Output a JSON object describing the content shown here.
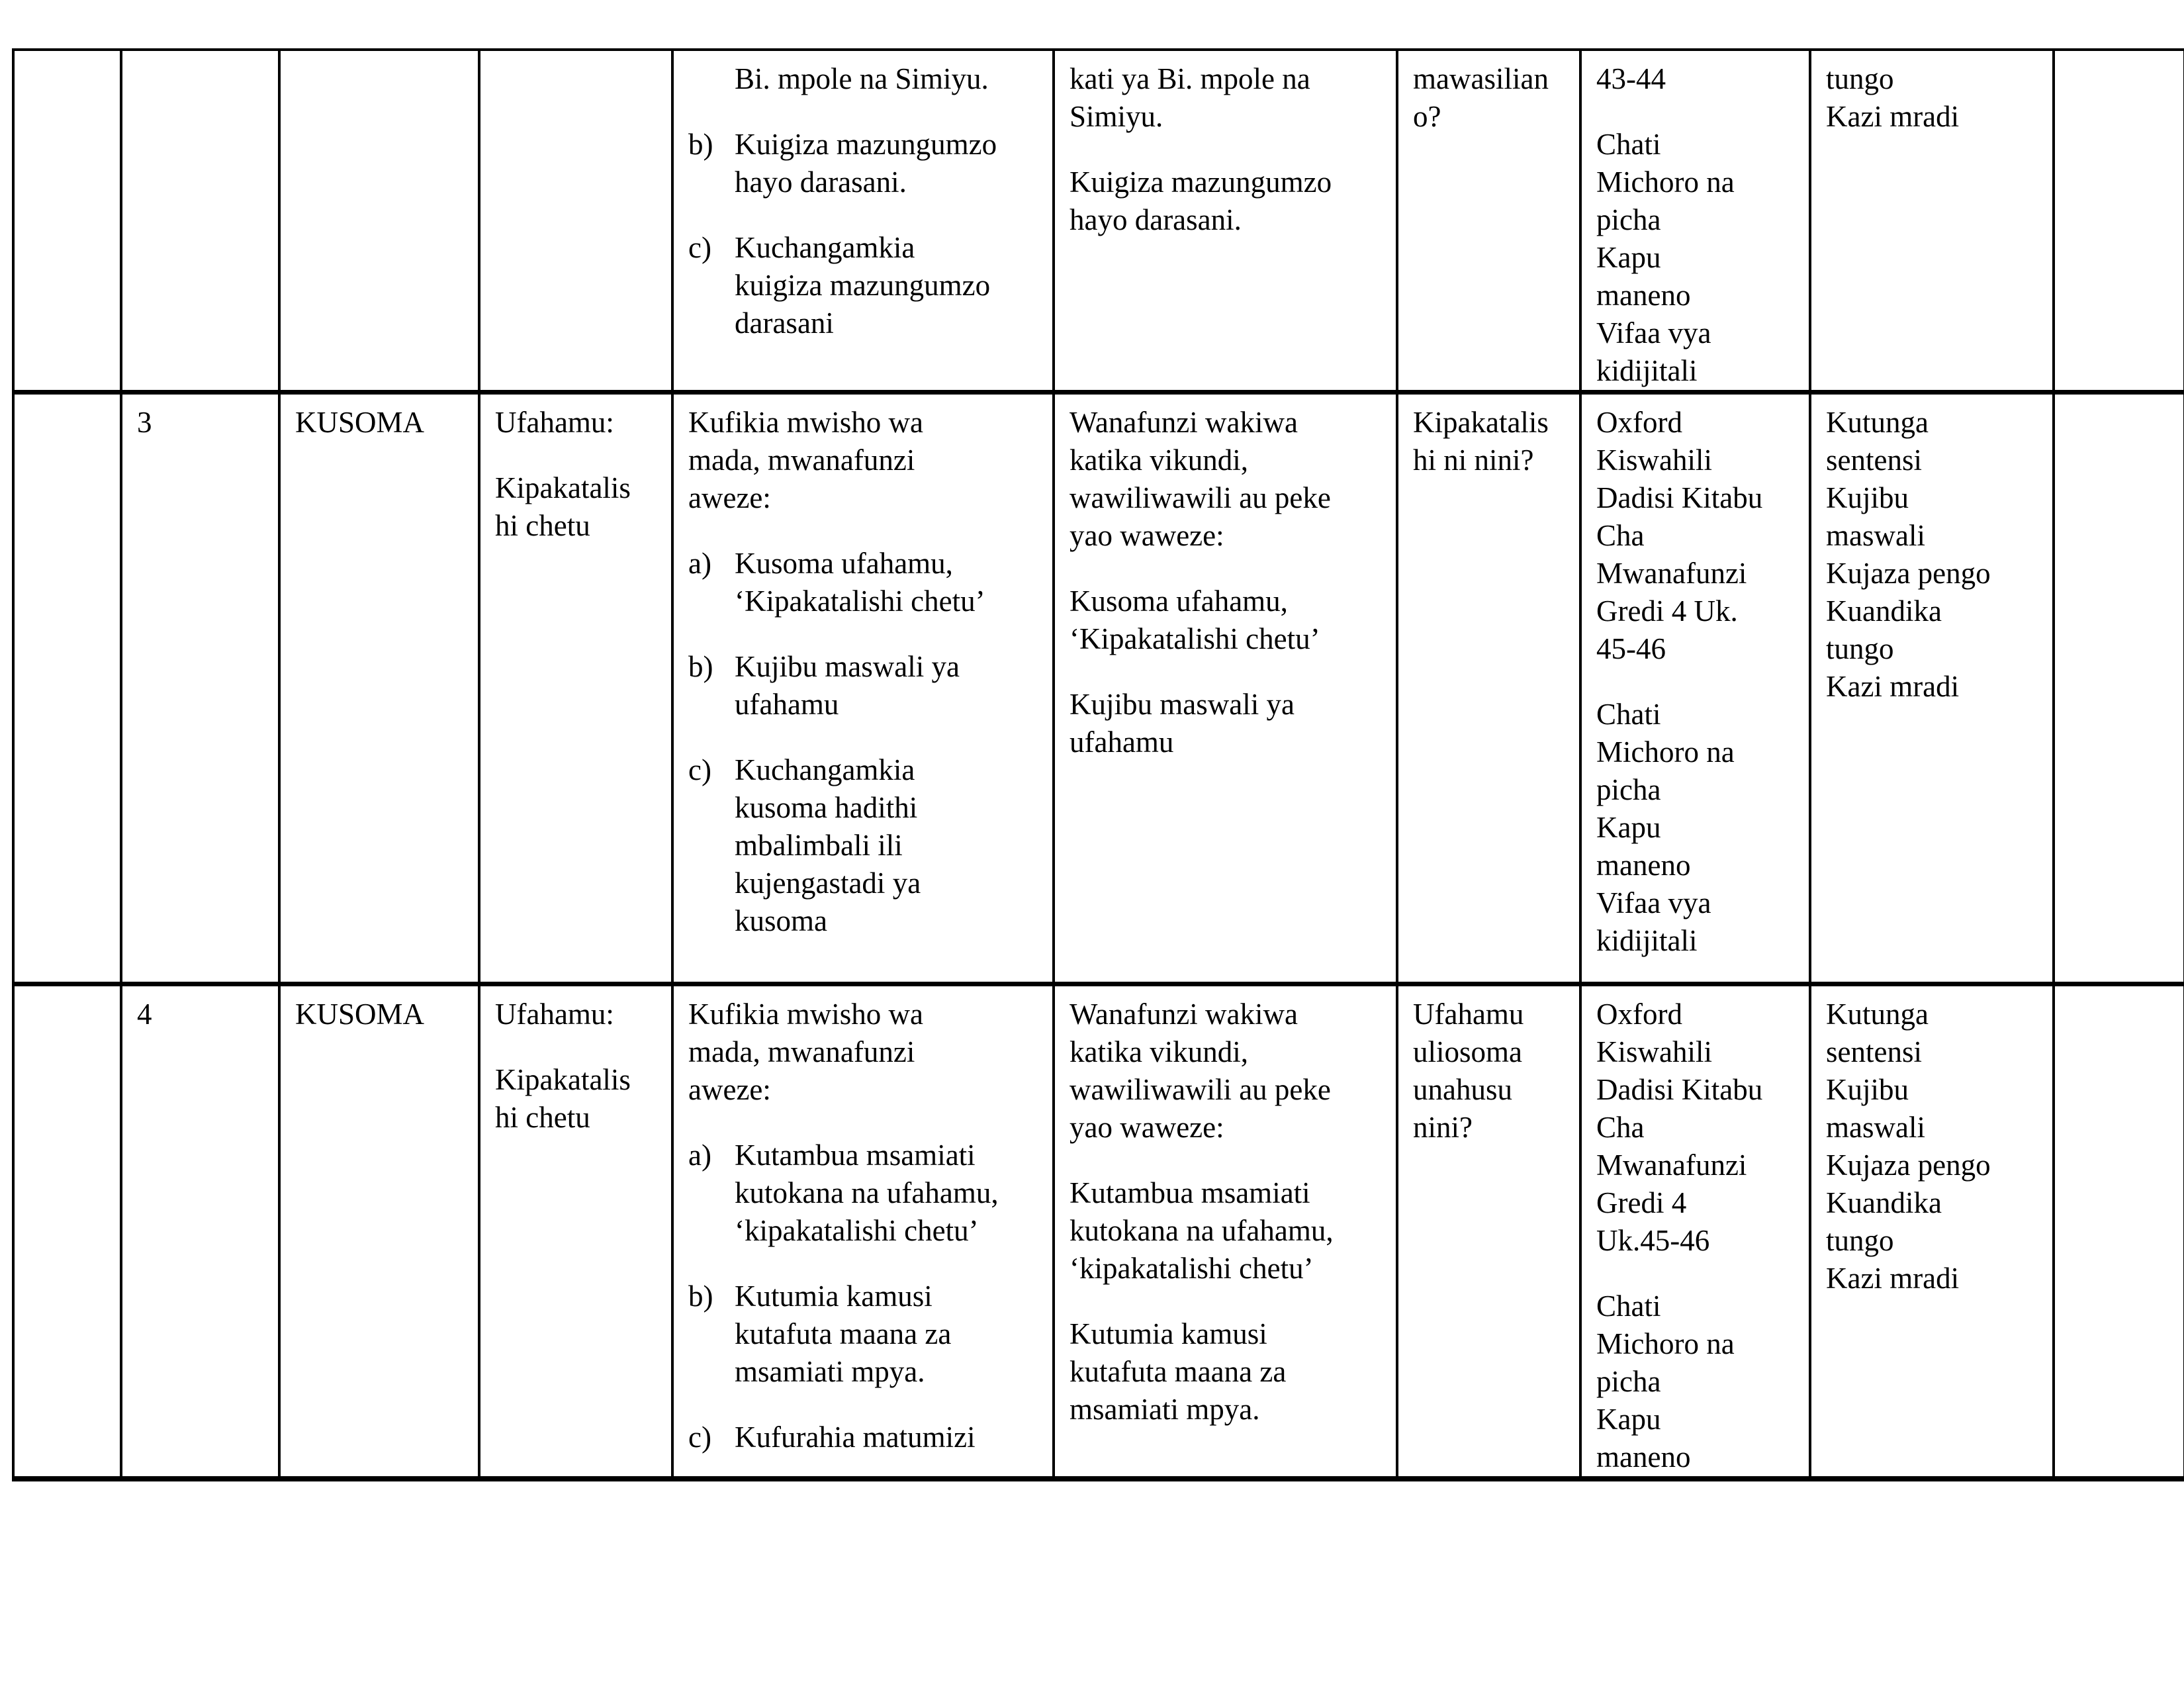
{
  "document": {
    "kind": "scheme-of-work-table",
    "language": "Kiswahili",
    "background_color": "#ffffff",
    "border_color": "#000000",
    "text_color": "#000000"
  },
  "table": {
    "columns": [
      {
        "key": "week",
        "role": "week-column-empty"
      },
      {
        "key": "lesson",
        "role": "lesson-number"
      },
      {
        "key": "strand",
        "role": "strand"
      },
      {
        "key": "substrand",
        "role": "sub-strand"
      },
      {
        "key": "outcomes",
        "role": "specific-learning-outcomes"
      },
      {
        "key": "activities",
        "role": "learning-activities"
      },
      {
        "key": "inquiry",
        "role": "key-inquiry-question"
      },
      {
        "key": "resources",
        "role": "learning-resources"
      },
      {
        "key": "assessment",
        "role": "assessment-methods"
      },
      {
        "key": "remarks",
        "role": "remarks-column-empty"
      }
    ],
    "rows": [
      {
        "name": "continuation-row",
        "cells": {
          "week": [],
          "lesson": [],
          "strand": [],
          "substrand": [],
          "outcomes": [
            {
              "indent": true,
              "lines": [
                "Bi. mpole na Simiyu."
              ]
            },
            {
              "marker": "b)",
              "lines": [
                "Kuigiza mazungumzo",
                "hayo darasani."
              ]
            },
            {
              "marker": "c)",
              "lines": [
                "Kuchangamkia",
                "kuigiza mazungumzo",
                "darasani"
              ]
            }
          ],
          "activities": [
            {
              "lines": [
                "kati ya Bi. mpole na",
                "Simiyu."
              ]
            },
            {
              "lines": [
                "Kuigiza mazungumzo",
                "hayo darasani."
              ]
            }
          ],
          "inquiry": [
            {
              "lines": [
                "mawasilian",
                "o?"
              ]
            }
          ],
          "resources": [
            {
              "lines": [
                "43-44"
              ]
            },
            {
              "lines": [
                "Chati",
                "Michoro na",
                "picha",
                "Kapu",
                "maneno",
                "Vifaa vya",
                "kidijitali"
              ]
            }
          ],
          "assessment": [
            {
              "lines": [
                "tungo",
                "Kazi mradi"
              ]
            }
          ],
          "remarks": []
        }
      },
      {
        "name": "lesson-3-row",
        "cells": {
          "week": [],
          "lesson": [
            {
              "lines": [
                "3"
              ]
            }
          ],
          "strand": [
            {
              "lines": [
                "KUSOMA"
              ]
            }
          ],
          "substrand": [
            {
              "lines": [
                "Ufahamu:"
              ]
            },
            {
              "lines": [
                "Kipakatalis",
                "hi chetu"
              ]
            }
          ],
          "outcomes": [
            {
              "lines": [
                "Kufikia mwisho wa",
                "mada, mwanafunzi",
                "aweze:"
              ]
            },
            {
              "marker": "a)",
              "lines": [
                "Kusoma ufahamu,",
                "‘Kipakatalishi chetu’"
              ]
            },
            {
              "marker": "b)",
              "lines": [
                "Kujibu maswali ya",
                "ufahamu"
              ]
            },
            {
              "marker": "c)",
              "lines": [
                "Kuchangamkia",
                "kusoma hadithi",
                "mbalimbali ili",
                "kujengastadi ya",
                "kusoma"
              ]
            }
          ],
          "activities": [
            {
              "lines": [
                "Wanafunzi wakiwa",
                "katika vikundi,",
                "wawiliwawili au peke",
                "yao waweze:"
              ]
            },
            {
              "lines": [
                "Kusoma ufahamu,",
                "‘Kipakatalishi chetu’"
              ]
            },
            {
              "lines": [
                "Kujibu maswali ya",
                "ufahamu"
              ]
            }
          ],
          "inquiry": [
            {
              "lines": [
                "Kipakatalis",
                "hi ni nini?"
              ]
            }
          ],
          "resources": [
            {
              "lines": [
                "Oxford",
                "Kiswahili",
                "Dadisi Kitabu",
                "Cha",
                "Mwanafunzi",
                "Gredi 4 Uk.",
                "45-46"
              ]
            },
            {
              "lines": [
                "Chati",
                "Michoro na",
                "picha",
                "Kapu",
                "maneno",
                "Vifaa vya",
                "kidijitali"
              ]
            }
          ],
          "assessment": [
            {
              "lines": [
                "Kutunga",
                "sentensi",
                "Kujibu",
                "maswali",
                "Kujaza pengo",
                "Kuandika",
                "tungo",
                "Kazi mradi"
              ]
            }
          ],
          "remarks": []
        }
      },
      {
        "name": "lesson-4-row",
        "cells": {
          "week": [],
          "lesson": [
            {
              "lines": [
                "4"
              ]
            }
          ],
          "strand": [
            {
              "lines": [
                "KUSOMA"
              ]
            }
          ],
          "substrand": [
            {
              "lines": [
                "Ufahamu:"
              ]
            },
            {
              "lines": [
                "Kipakatalis",
                "hi chetu"
              ]
            }
          ],
          "outcomes": [
            {
              "lines": [
                "Kufikia mwisho wa",
                "mada, mwanafunzi",
                "aweze:"
              ]
            },
            {
              "marker": "a)",
              "lines": [
                "Kutambua msamiati",
                "kutokana na ufahamu,",
                "‘kipakatalishi chetu’"
              ]
            },
            {
              "marker": "b)",
              "lines": [
                "Kutumia kamusi",
                "kutafuta maana za",
                "msamiati mpya."
              ]
            },
            {
              "marker": "c)",
              "lines": [
                "Kufurahia matumizi"
              ]
            }
          ],
          "activities": [
            {
              "lines": [
                "Wanafunzi wakiwa",
                "katika vikundi,",
                "wawiliwawili au peke",
                "yao waweze:"
              ]
            },
            {
              "lines": [
                "Kutambua msamiati",
                "kutokana na ufahamu,",
                "‘kipakatalishi chetu’"
              ]
            },
            {
              "lines": [
                "Kutumia kamusi",
                "kutafuta maana za",
                "msamiati mpya."
              ]
            }
          ],
          "inquiry": [
            {
              "lines": [
                "Ufahamu",
                "uliosoma",
                "unahusu",
                "nini?"
              ]
            }
          ],
          "resources": [
            {
              "lines": [
                "Oxford",
                "Kiswahili",
                "Dadisi Kitabu",
                "Cha",
                "Mwanafunzi",
                "Gredi 4",
                "Uk.45-46"
              ]
            },
            {
              "lines": [
                "Chati",
                "Michoro na",
                "picha",
                "Kapu",
                "maneno"
              ]
            }
          ],
          "assessment": [
            {
              "lines": [
                "Kutunga",
                "sentensi",
                "Kujibu",
                "maswali",
                "Kujaza pengo",
                "Kuandika",
                "tungo",
                "Kazi mradi"
              ]
            }
          ],
          "remarks": []
        }
      }
    ]
  }
}
